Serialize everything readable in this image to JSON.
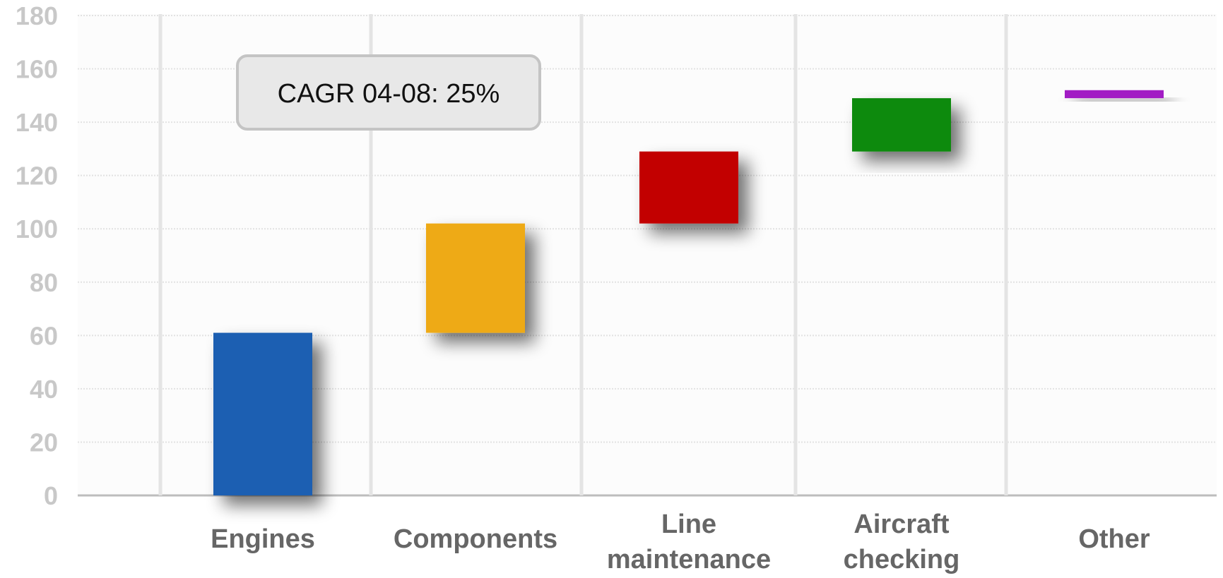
{
  "chart_data": {
    "type": "bar",
    "subtype": "waterfall",
    "title": "",
    "xlabel": "",
    "ylabel": "",
    "categories": [
      "Engines",
      "Components",
      "Line maintenance",
      "Aircraft checking",
      "Other"
    ],
    "category_lines": [
      [
        "Engines"
      ],
      [
        "Components"
      ],
      [
        "Line",
        "maintenance"
      ],
      [
        "Aircraft",
        "checking"
      ],
      [
        "Other"
      ]
    ],
    "series": [
      {
        "base": [
          0,
          61,
          102,
          129,
          149
        ],
        "top": [
          61,
          102,
          129,
          149,
          152
        ],
        "values": [
          61,
          41,
          27,
          20,
          3
        ],
        "colors": [
          "#1b5fb2",
          "#eeaa17",
          "#c20000",
          "#0a8a0a",
          "#a21cc4"
        ]
      }
    ],
    "ylim": [
      0,
      180
    ],
    "yticks": [
      0,
      20,
      40,
      60,
      80,
      100,
      120,
      140,
      160,
      180
    ],
    "grid": true,
    "legend": "none",
    "annotation": "CAGR 04-08: 25%"
  }
}
